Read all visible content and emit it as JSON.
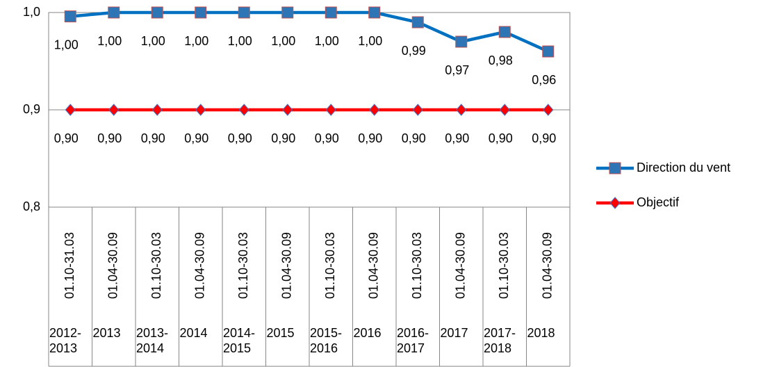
{
  "chart_data": {
    "type": "line",
    "categories": [
      "01.10-31.03",
      "01.04-30.09",
      "01.10-30.03",
      "01.04-30.09",
      "01.10-30.03",
      "01.04-30.09",
      "01.10-30.03",
      "01.04-30.09",
      "01.10-30.03",
      "01.04-30.09",
      "01.10-30.03",
      "01.04-30.09"
    ],
    "category_groups": [
      "2012-2013",
      "2013",
      "2013-2014",
      "2014",
      "2014-2015",
      "2015",
      "2015-2016",
      "2016",
      "2016-2017",
      "2017",
      "2017-2018",
      "2018"
    ],
    "series": [
      {
        "name": "Direction du vent",
        "color": "#0070c0",
        "marker": "square",
        "marker_color": "#2e75b6",
        "marker_edge": "#c0504d",
        "values": [
          0.996,
          1.0,
          1.0,
          1.0,
          1.0,
          1.0,
          1.0,
          1.0,
          0.99,
          0.97,
          0.98,
          0.96
        ],
        "value_labels": [
          "1,00",
          "1,00",
          "1,00",
          "1,00",
          "1,00",
          "1,00",
          "1,00",
          "1,00",
          "0,99",
          "0,97",
          "0,98",
          "0,96"
        ]
      },
      {
        "name": "Objectif",
        "color": "#ff0000",
        "marker": "diamond",
        "marker_color": "#ff0000",
        "marker_edge": "#4472c4",
        "values": [
          0.9,
          0.9,
          0.9,
          0.9,
          0.9,
          0.9,
          0.9,
          0.9,
          0.9,
          0.9,
          0.9,
          0.9
        ],
        "value_labels": [
          "0,90",
          "0,90",
          "0,90",
          "0,90",
          "0,90",
          "0,90",
          "0,90",
          "0,90",
          "0,90",
          "0,90",
          "0,90",
          "0,90"
        ]
      }
    ],
    "ylim": [
      0.8,
      1.0
    ],
    "yticks": [
      {
        "value": 0.8,
        "label": "0,8"
      },
      {
        "value": 0.9,
        "label": "0,9"
      },
      {
        "value": 1.0,
        "label": "1,0"
      }
    ],
    "grid": true,
    "legend": "right"
  }
}
